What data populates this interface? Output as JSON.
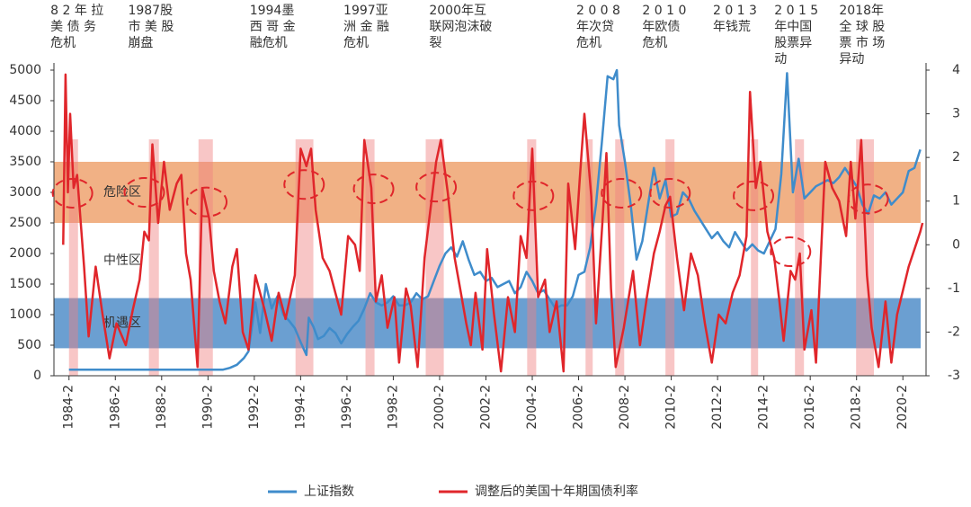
{
  "chart_data": {
    "type": "line",
    "xlim": [
      1983.6,
      2021.25
    ],
    "xticks": [
      {
        "value": 1984.25,
        "label": "1984-2"
      },
      {
        "value": 1986.25,
        "label": "1986-2"
      },
      {
        "value": 1988.25,
        "label": "1988-2"
      },
      {
        "value": 1990.25,
        "label": "1990-2"
      },
      {
        "value": 1992.25,
        "label": "1992-2"
      },
      {
        "value": 1994.25,
        "label": "1994-2"
      },
      {
        "value": 1996.25,
        "label": "1996-2"
      },
      {
        "value": 1998.25,
        "label": "1998-2"
      },
      {
        "value": 2000.25,
        "label": "2000-2"
      },
      {
        "value": 2002.25,
        "label": "2002-2"
      },
      {
        "value": 2004.25,
        "label": "2004-2"
      },
      {
        "value": 2006.25,
        "label": "2006-2"
      },
      {
        "value": 2008.25,
        "label": "2008-2"
      },
      {
        "value": 2010.25,
        "label": "2010-2"
      },
      {
        "value": 2012.25,
        "label": "2012-2"
      },
      {
        "value": 2014.25,
        "label": "2014-2"
      },
      {
        "value": 2016.25,
        "label": "2016-2"
      },
      {
        "value": 2018.25,
        "label": "2018-2"
      },
      {
        "value": 2020.25,
        "label": "2020-2"
      }
    ],
    "ylim": [
      0,
      5000
    ],
    "yticks": [
      0,
      500,
      1000,
      1500,
      2000,
      2500,
      3000,
      3500,
      4000,
      4500,
      5000
    ],
    "y2lim": [
      -3,
      4
    ],
    "y2ticks": [
      -3,
      -2,
      -1,
      0,
      1,
      2,
      3,
      4
    ],
    "bands": [
      {
        "name": "危险区",
        "range": [
          2500,
          3500
        ],
        "color": "#f0a878"
      },
      {
        "name": "中性区",
        "range": [
          1270,
          2500
        ],
        "color": "#ffffff"
      },
      {
        "name": "机遇区",
        "range": [
          450,
          1270
        ],
        "color": "#5b95cc"
      }
    ],
    "shaded_periods": [
      [
        1984.25,
        1984.64
      ],
      [
        1987.7,
        1988.13
      ],
      [
        1989.84,
        1990.46
      ],
      [
        1994.03,
        1994.8
      ],
      [
        1997.05,
        1997.44
      ],
      [
        1999.65,
        2000.43
      ],
      [
        2004.03,
        2004.42
      ],
      [
        2006.55,
        2006.86
      ],
      [
        2007.83,
        2008.22
      ],
      [
        2010.0,
        2010.39
      ],
      [
        2013.69,
        2014.0
      ],
      [
        2015.59,
        2015.98
      ],
      [
        2018.23,
        2019.0
      ]
    ],
    "highlight_circles": [
      {
        "x": 1984.4,
        "y": 1.18
      },
      {
        "x": 1987.5,
        "y": 1.2
      },
      {
        "x": 1990.2,
        "y": 0.98
      },
      {
        "x": 1994.4,
        "y": 1.38
      },
      {
        "x": 1997.4,
        "y": 1.28
      },
      {
        "x": 2000.1,
        "y": 1.32
      },
      {
        "x": 2004.3,
        "y": 1.12
      },
      {
        "x": 2008.1,
        "y": 1.18
      },
      {
        "x": 2010.2,
        "y": 1.18
      },
      {
        "x": 2013.8,
        "y": 1.12
      },
      {
        "x": 2015.4,
        "y": -0.16
      },
      {
        "x": 2018.75,
        "y": 1.05
      }
    ],
    "annotations": [
      {
        "x": 1983.45,
        "lines": [
          "8 2 年 拉",
          "美 债 务",
          "危机"
        ]
      },
      {
        "x": 1986.8,
        "lines": [
          "1987股",
          "市 美 股",
          "崩盘"
        ]
      },
      {
        "x": 1992.05,
        "lines": [
          "1994墨",
          "西 哥 金",
          "融危机"
        ]
      },
      {
        "x": 1996.1,
        "lines": [
          "1997亚",
          "洲 金 融",
          "危机"
        ]
      },
      {
        "x": 1999.8,
        "lines": [
          "2000年互",
          "联网泡沫破",
          "裂"
        ]
      },
      {
        "x": 2006.15,
        "lines": [
          "2 0 0 8",
          "年次贷",
          "危机"
        ]
      },
      {
        "x": 2009.0,
        "lines": [
          "2 0 1 0",
          "年欧债",
          "危机"
        ]
      },
      {
        "x": 2012.05,
        "lines": [
          "2 0 1 3",
          "年钱荒"
        ]
      },
      {
        "x": 2014.7,
        "lines": [
          "2 0 1 5",
          "年中国",
          "股票异",
          "动"
        ]
      },
      {
        "x": 2017.5,
        "lines": [
          "2018年",
          "全 球 股",
          "票 市 场",
          "异动"
        ]
      }
    ],
    "series": [
      {
        "name": "上证指数",
        "color": "#3f8ccb",
        "x": [
          1984.25,
          1990.9,
          1991.2,
          1991.5,
          1991.8,
          1992.0,
          1992.3,
          1992.5,
          1992.75,
          1993.0,
          1993.25,
          1993.5,
          1993.75,
          1994.0,
          1994.25,
          1994.5,
          1994.6,
          1994.8,
          1995.0,
          1995.25,
          1995.5,
          1995.75,
          1996.0,
          1996.25,
          1996.5,
          1996.75,
          1997.0,
          1997.25,
          1997.5,
          1997.75,
          1998.0,
          1998.25,
          1998.5,
          1998.75,
          1999.0,
          1999.25,
          1999.5,
          1999.75,
          2000.0,
          2000.25,
          2000.5,
          2000.75,
          2001.0,
          2001.25,
          2001.5,
          2001.75,
          2002.0,
          2002.25,
          2002.5,
          2002.75,
          2003.0,
          2003.25,
          2003.5,
          2003.75,
          2004.0,
          2004.25,
          2004.5,
          2004.75,
          2005.0,
          2005.25,
          2005.5,
          2005.75,
          2006.0,
          2006.25,
          2006.5,
          2006.75,
          2007.0,
          2007.25,
          2007.5,
          2007.75,
          2007.9,
          2008.0,
          2008.25,
          2008.5,
          2008.75,
          2009.0,
          2009.25,
          2009.5,
          2009.75,
          2010.0,
          2010.25,
          2010.5,
          2010.75,
          2011.0,
          2011.25,
          2011.5,
          2011.75,
          2012.0,
          2012.25,
          2012.5,
          2012.75,
          2013.0,
          2013.25,
          2013.5,
          2013.75,
          2014.0,
          2014.25,
          2014.5,
          2014.75,
          2015.0,
          2015.25,
          2015.5,
          2015.75,
          2016.0,
          2016.25,
          2016.5,
          2016.75,
          2017.0,
          2017.25,
          2017.5,
          2017.75,
          2018.0,
          2018.25,
          2018.5,
          2018.75,
          2019.0,
          2019.25,
          2019.5,
          2019.75,
          2020.0,
          2020.25,
          2020.5,
          2020.75,
          2021.0
        ],
        "values": [
          100,
          100,
          130,
          180,
          290,
          400,
          1200,
          700,
          1500,
          1100,
          1300,
          1000,
          900,
          780,
          550,
          340,
          950,
          800,
          600,
          650,
          780,
          700,
          530,
          680,
          800,
          900,
          1100,
          1350,
          1200,
          1150,
          1200,
          1300,
          1150,
          1150,
          1200,
          1350,
          1250,
          1300,
          1550,
          1800,
          2000,
          2100,
          1950,
          2200,
          1900,
          1650,
          1700,
          1550,
          1600,
          1450,
          1500,
          1550,
          1350,
          1450,
          1700,
          1550,
          1350,
          1400,
          1250,
          1100,
          1150,
          1150,
          1300,
          1650,
          1700,
          2100,
          2800,
          3800,
          4900,
          4850,
          5000,
          4100,
          3500,
          2800,
          1900,
          2200,
          2800,
          3400,
          2900,
          3200,
          2600,
          2650,
          3000,
          2900,
          2700,
          2550,
          2400,
          2250,
          2350,
          2200,
          2100,
          2350,
          2200,
          2050,
          2150,
          2050,
          2000,
          2200,
          2400,
          3300,
          4950,
          3000,
          3550,
          2900,
          3000,
          3100,
          3150,
          3200,
          3150,
          3250,
          3400,
          3250,
          3100,
          2800,
          2650,
          2950,
          2900,
          3000,
          2800,
          2900,
          3000,
          3350,
          3400,
          3700
        ]
      },
      {
        "name": "调整后的美国十年期国债利率",
        "color": "#e0262b",
        "axis": "y2",
        "x": [
          1984.0,
          1984.1,
          1984.2,
          1984.3,
          1984.45,
          1984.6,
          1984.9,
          1985.1,
          1985.4,
          1985.7,
          1986.0,
          1986.3,
          1986.7,
          1987.0,
          1987.3,
          1987.5,
          1987.7,
          1987.85,
          1988.1,
          1988.35,
          1988.6,
          1988.9,
          1989.1,
          1989.3,
          1989.5,
          1989.8,
          1990.0,
          1990.3,
          1990.5,
          1990.75,
          1991.0,
          1991.3,
          1991.5,
          1991.75,
          1992.0,
          1992.3,
          1992.7,
          1993.0,
          1993.3,
          1993.6,
          1994.0,
          1994.25,
          1994.5,
          1994.7,
          1994.9,
          1995.2,
          1995.5,
          1995.75,
          1996.0,
          1996.3,
          1996.6,
          1996.8,
          1997.0,
          1997.3,
          1997.5,
          1997.75,
          1998.0,
          1998.3,
          1998.5,
          1998.8,
          1999.0,
          1999.3,
          1999.6,
          1999.9,
          2000.1,
          2000.3,
          2000.6,
          2000.9,
          2001.1,
          2001.4,
          2001.6,
          2001.8,
          2002.1,
          2002.3,
          2002.6,
          2002.9,
          2003.2,
          2003.5,
          2003.75,
          2004.0,
          2004.25,
          2004.5,
          2004.8,
          2005.0,
          2005.3,
          2005.6,
          2005.8,
          2006.1,
          2006.3,
          2006.5,
          2006.8,
          2007.0,
          2007.3,
          2007.45,
          2007.65,
          2007.85,
          2008.2,
          2008.6,
          2008.9,
          2009.2,
          2009.5,
          2009.75,
          2010.0,
          2010.2,
          2010.5,
          2010.8,
          2011.1,
          2011.4,
          2011.7,
          2012.0,
          2012.3,
          2012.6,
          2012.9,
          2013.2,
          2013.5,
          2013.65,
          2013.9,
          2014.1,
          2014.4,
          2014.7,
          2014.9,
          2015.1,
          2015.4,
          2015.6,
          2015.8,
          2016.0,
          2016.3,
          2016.5,
          2016.9,
          2017.2,
          2017.5,
          2017.8,
          2018.0,
          2018.2,
          2018.45,
          2018.7,
          2018.9,
          2019.2,
          2019.5,
          2019.75,
          2020.0,
          2020.5,
          2021.0,
          2021.1
        ],
        "values": [
          0,
          3.9,
          1.2,
          3.0,
          1.3,
          1.6,
          -0.5,
          -2.1,
          -0.5,
          -1.6,
          -2.6,
          -1.8,
          -2.3,
          -1.5,
          -0.8,
          0.3,
          0.1,
          2.3,
          0.5,
          1.9,
          0.8,
          1.4,
          1.6,
          -0.2,
          -0.8,
          -2.8,
          1.3,
          0.6,
          -0.6,
          -1.3,
          -1.8,
          -0.5,
          -0.1,
          -2.0,
          -2.4,
          -0.7,
          -1.5,
          -2.2,
          -1.1,
          -1.7,
          -0.7,
          2.2,
          1.8,
          2.2,
          0.8,
          -0.3,
          -0.6,
          -1.1,
          -1.6,
          0.2,
          0,
          -0.6,
          2.4,
          1.3,
          -1.3,
          -0.7,
          -1.9,
          -1.2,
          -2.7,
          -1.0,
          -1.4,
          -2.8,
          -0.3,
          1.0,
          1.9,
          2.4,
          1.2,
          -0.3,
          -0.9,
          -1.8,
          -2.3,
          -1.1,
          -2.4,
          -0.1,
          -1.6,
          -2.9,
          -1.2,
          -2.0,
          0.2,
          -0.3,
          2.2,
          -1.2,
          -0.8,
          -2.0,
          -1.3,
          -2.9,
          1.4,
          -0.1,
          1.5,
          3.0,
          1.1,
          -1.8,
          0.7,
          2.1,
          -1.0,
          -2.8,
          -1.9,
          -0.6,
          -2.3,
          -1.2,
          -0.2,
          0.3,
          0.9,
          1.1,
          -0.3,
          -1.5,
          -0.2,
          -0.7,
          -1.8,
          -2.7,
          -1.6,
          -1.8,
          -1.1,
          -0.7,
          0.2,
          3.5,
          1.3,
          1.9,
          0.3,
          -0.3,
          -1.2,
          -2.2,
          -0.6,
          -0.8,
          -0.2,
          -2.4,
          -1.5,
          -2.7,
          1.9,
          1.3,
          1.0,
          0.2,
          1.9,
          0.6,
          2.4,
          -0.7,
          -1.9,
          -2.8,
          -1.3,
          -2.7,
          -1.6,
          -0.5,
          0.3,
          0.5
        ]
      }
    ]
  }
}
